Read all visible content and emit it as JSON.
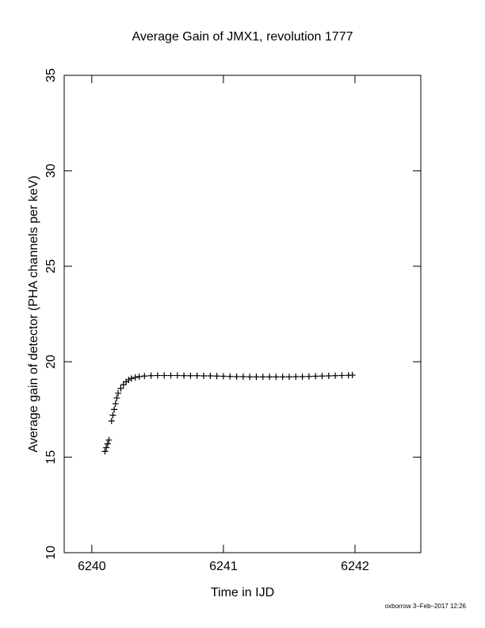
{
  "chart_data": {
    "type": "scatter",
    "title": "Average Gain of JMX1, revolution 1777",
    "x_label": "Time in IJD",
    "y_label": "Average gain of detector (PHA channels per keV)",
    "footer": "oxborrow  3–Feb–2017 12:26",
    "xlim": [
      6239.79,
      6242.5
    ],
    "ylim": [
      10,
      35
    ],
    "xticks": [
      6240,
      6241,
      6242
    ],
    "yticks": [
      10,
      15,
      20,
      25,
      30,
      35
    ],
    "marker": "+",
    "series": [
      {
        "color": "#000000",
        "x": [
          6240.1,
          6240.11,
          6240.12,
          6240.13,
          6240.15,
          6240.16,
          6240.17,
          6240.18,
          6240.19,
          6240.2,
          6240.22,
          6240.24,
          6240.26,
          6240.28,
          6240.3,
          6240.33,
          6240.36,
          6240.4,
          6240.45,
          6240.5,
          6240.55,
          6240.6,
          6240.65,
          6240.7,
          6240.75,
          6240.8,
          6240.85,
          6240.9,
          6240.95,
          6241.0,
          6241.05,
          6241.1,
          6241.15,
          6241.2,
          6241.25,
          6241.3,
          6241.35,
          6241.4,
          6241.45,
          6241.5,
          6241.55,
          6241.6,
          6241.65,
          6241.7,
          6241.75,
          6241.8,
          6241.85,
          6241.9,
          6241.95,
          6241.98
        ],
        "values": [
          15.3,
          15.5,
          15.7,
          15.9,
          16.9,
          17.2,
          17.5,
          17.8,
          18.1,
          18.35,
          18.6,
          18.8,
          18.95,
          19.05,
          19.12,
          19.18,
          19.22,
          19.25,
          19.27,
          19.28,
          19.28,
          19.28,
          19.28,
          19.27,
          19.27,
          19.27,
          19.26,
          19.26,
          19.25,
          19.24,
          19.23,
          19.22,
          19.22,
          19.21,
          19.21,
          19.21,
          19.21,
          19.21,
          19.21,
          19.21,
          19.22,
          19.22,
          19.23,
          19.24,
          19.25,
          19.26,
          19.27,
          19.28,
          19.29,
          19.3
        ]
      }
    ]
  }
}
